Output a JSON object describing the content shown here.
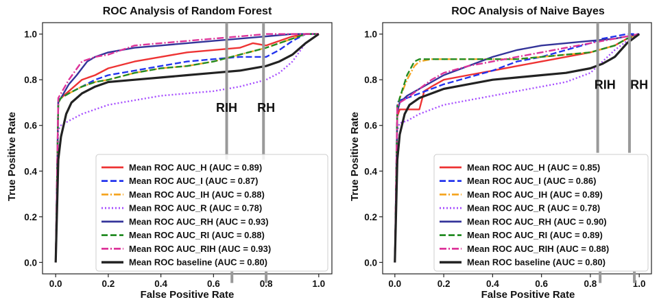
{
  "chart_data": [
    {
      "type": "line",
      "title": "ROC Analysis of Random Forest",
      "xlabel": "False Positive Rate",
      "ylabel": "True Positive Rate",
      "xlim": [
        -0.05,
        1.05
      ],
      "ylim": [
        -0.05,
        1.05
      ],
      "xticks": [
        "0.0",
        "0.2",
        "0.4",
        "0.6",
        "0.8",
        "1.0"
      ],
      "yticks": [
        "0.0",
        "0.2",
        "0.4",
        "0.6",
        "0.8",
        "1.0"
      ],
      "grid": false,
      "legend_position": "lower-right",
      "annotations": [
        {
          "text": "RIH",
          "x": 0.65,
          "y": 0.66
        },
        {
          "text": "RH",
          "x": 0.8,
          "y": 0.66
        }
      ],
      "vlines": [
        {
          "x": 0.65,
          "ymin": 0.45,
          "ymax": 1.05,
          "color": "#999999"
        },
        {
          "x": 0.79,
          "ymin": 0.45,
          "ymax": 1.05,
          "color": "#999999"
        },
        {
          "x": 0.67,
          "ymin": -0.09,
          "ymax": -0.04,
          "color": "#999999"
        },
        {
          "x": 0.8,
          "ymin": -0.09,
          "ymax": -0.04,
          "color": "#999999"
        }
      ],
      "series": [
        {
          "name": "Mean ROC AUC_H (AUC = 0.89)",
          "color": "#ee3333",
          "dash": "solid",
          "x": [
            0,
            0.01,
            0.02,
            0.05,
            0.08,
            0.1,
            0.15,
            0.2,
            0.3,
            0.4,
            0.5,
            0.6,
            0.7,
            0.75,
            0.8,
            0.85,
            0.9,
            0.95,
            1.0
          ],
          "y": [
            0,
            0.7,
            0.72,
            0.75,
            0.78,
            0.8,
            0.82,
            0.85,
            0.88,
            0.9,
            0.92,
            0.93,
            0.94,
            0.96,
            0.95,
            0.97,
            0.99,
            1.0,
            1.0
          ]
        },
        {
          "name": "Mean ROC AUC_I (AUC = 0.87)",
          "color": "#2233ee",
          "dash": "dashed",
          "x": [
            0,
            0.01,
            0.02,
            0.05,
            0.1,
            0.15,
            0.2,
            0.3,
            0.4,
            0.5,
            0.6,
            0.7,
            0.75,
            0.8,
            0.85,
            0.9,
            0.95,
            1.0
          ],
          "y": [
            0,
            0.7,
            0.72,
            0.74,
            0.77,
            0.8,
            0.82,
            0.84,
            0.86,
            0.88,
            0.89,
            0.9,
            0.9,
            0.9,
            0.93,
            0.97,
            1.0,
            1.0
          ]
        },
        {
          "name": "Mean ROC AUC_IH (AUC = 0.88)",
          "color": "#f5a623",
          "dash": "dashdot",
          "x": [
            0,
            0.01,
            0.02,
            0.05,
            0.1,
            0.15,
            0.2,
            0.3,
            0.4,
            0.5,
            0.6,
            0.7,
            0.8,
            0.9,
            0.95,
            1.0
          ],
          "y": [
            0,
            0.7,
            0.72,
            0.74,
            0.77,
            0.79,
            0.8,
            0.83,
            0.85,
            0.86,
            0.88,
            0.91,
            0.94,
            0.98,
            1.0,
            1.0
          ]
        },
        {
          "name": "Mean ROC AUC_R (AUC = 0.78)",
          "color": "#a64dff",
          "dash": "dotted",
          "x": [
            0,
            0.01,
            0.02,
            0.05,
            0.1,
            0.15,
            0.2,
            0.3,
            0.4,
            0.5,
            0.6,
            0.7,
            0.8,
            0.85,
            0.9,
            0.95,
            1.0
          ],
          "y": [
            0,
            0.58,
            0.6,
            0.62,
            0.65,
            0.67,
            0.69,
            0.71,
            0.73,
            0.74,
            0.75,
            0.77,
            0.8,
            0.83,
            0.88,
            0.96,
            1.0
          ]
        },
        {
          "name": "Mean ROC AUC_RH (AUC = 0.93)",
          "color": "#333399",
          "dash": "solid",
          "x": [
            0,
            0.01,
            0.02,
            0.05,
            0.08,
            0.1,
            0.12,
            0.15,
            0.2,
            0.25,
            0.3,
            0.4,
            0.5,
            0.6,
            0.7,
            0.8,
            0.9,
            1.0
          ],
          "y": [
            0,
            0.71,
            0.72,
            0.78,
            0.82,
            0.85,
            0.88,
            0.9,
            0.92,
            0.93,
            0.94,
            0.95,
            0.96,
            0.97,
            0.98,
            0.99,
            1.0,
            1.0
          ]
        },
        {
          "name": "Mean ROC AUC_RI (AUC = 0.88)",
          "color": "#228b22",
          "dash": "dashed",
          "x": [
            0,
            0.01,
            0.02,
            0.05,
            0.1,
            0.15,
            0.2,
            0.3,
            0.4,
            0.5,
            0.6,
            0.7,
            0.8,
            0.9,
            0.95,
            1.0
          ],
          "y": [
            0,
            0.7,
            0.72,
            0.74,
            0.77,
            0.79,
            0.8,
            0.83,
            0.85,
            0.86,
            0.88,
            0.91,
            0.94,
            0.98,
            1.0,
            1.0
          ]
        },
        {
          "name": "Mean ROC AUC_RIH (AUC = 0.93)",
          "color": "#dd3399",
          "dash": "dashdot",
          "x": [
            0,
            0.01,
            0.02,
            0.05,
            0.1,
            0.15,
            0.2,
            0.25,
            0.3,
            0.4,
            0.5,
            0.6,
            0.7,
            0.8,
            0.9,
            1.0
          ],
          "y": [
            0,
            0.72,
            0.74,
            0.8,
            0.88,
            0.9,
            0.91,
            0.93,
            0.95,
            0.96,
            0.97,
            0.98,
            0.99,
            1.0,
            1.0,
            1.0
          ]
        },
        {
          "name": "Mean ROC baseline (AUC = 0.80)",
          "color": "#222222",
          "dash": "solid",
          "x": [
            0,
            0.01,
            0.02,
            0.04,
            0.06,
            0.1,
            0.15,
            0.2,
            0.3,
            0.4,
            0.5,
            0.6,
            0.7,
            0.8,
            0.85,
            0.9,
            0.95,
            1.0
          ],
          "y": [
            0,
            0.45,
            0.55,
            0.65,
            0.7,
            0.74,
            0.77,
            0.79,
            0.8,
            0.81,
            0.82,
            0.83,
            0.84,
            0.86,
            0.88,
            0.91,
            0.96,
            1.0
          ]
        }
      ]
    },
    {
      "type": "line",
      "title": "ROC Analysis of Naive Bayes",
      "xlabel": "False Positive Rate",
      "ylabel": "True Positive Rate",
      "xlim": [
        -0.05,
        1.05
      ],
      "ylim": [
        -0.05,
        1.05
      ],
      "xticks": [
        "0.0",
        "0.2",
        "0.4",
        "0.6",
        "0.8",
        "1.0"
      ],
      "yticks": [
        "0.0",
        "0.2",
        "0.4",
        "0.6",
        "0.8",
        "1.0"
      ],
      "grid": false,
      "legend_position": "lower-right",
      "annotations": [
        {
          "text": "RIH",
          "x": 0.86,
          "y": 0.76
        },
        {
          "text": "RH",
          "x": 1.0,
          "y": 0.76
        }
      ],
      "vlines": [
        {
          "x": 0.83,
          "ymin": 0.48,
          "ymax": 1.05,
          "color": "#999999"
        },
        {
          "x": 0.96,
          "ymin": 0.48,
          "ymax": 1.05,
          "color": "#999999"
        },
        {
          "x": 0.84,
          "ymin": -0.09,
          "ymax": -0.04,
          "color": "#999999"
        },
        {
          "x": 0.98,
          "ymin": -0.09,
          "ymax": -0.04,
          "color": "#999999"
        }
      ],
      "series": [
        {
          "name": "Mean ROC AUC_H (AUC = 0.85)",
          "color": "#ee3333",
          "dash": "solid",
          "x": [
            0,
            0.01,
            0.02,
            0.05,
            0.1,
            0.12,
            0.15,
            0.2,
            0.3,
            0.4,
            0.5,
            0.6,
            0.7,
            0.8,
            0.9,
            0.95,
            1.0
          ],
          "y": [
            0,
            0.64,
            0.67,
            0.67,
            0.67,
            0.75,
            0.77,
            0.8,
            0.82,
            0.84,
            0.86,
            0.88,
            0.9,
            0.92,
            0.95,
            0.98,
            1.0
          ]
        },
        {
          "name": "Mean ROC AUC_I (AUC = 0.86)",
          "color": "#2233ee",
          "dash": "dashed",
          "x": [
            0,
            0.01,
            0.02,
            0.05,
            0.1,
            0.15,
            0.2,
            0.3,
            0.4,
            0.5,
            0.6,
            0.7,
            0.8,
            0.85,
            0.9,
            0.95,
            1.0
          ],
          "y": [
            0,
            0.7,
            0.71,
            0.72,
            0.74,
            0.76,
            0.78,
            0.81,
            0.84,
            0.88,
            0.9,
            0.93,
            0.96,
            0.98,
            0.99,
            1.0,
            1.0
          ]
        },
        {
          "name": "Mean ROC AUC_IH (AUC = 0.89)",
          "color": "#f5a623",
          "dash": "dashdot",
          "x": [
            0,
            0.01,
            0.02,
            0.05,
            0.08,
            0.1,
            0.15,
            0.2,
            0.3,
            0.4,
            0.5,
            0.6,
            0.7,
            0.8,
            0.9,
            0.95,
            1.0
          ],
          "y": [
            0,
            0.68,
            0.72,
            0.8,
            0.86,
            0.88,
            0.89,
            0.89,
            0.89,
            0.89,
            0.89,
            0.9,
            0.91,
            0.92,
            0.95,
            0.98,
            1.0
          ]
        },
        {
          "name": "Mean ROC AUC_R (AUC = 0.78)",
          "color": "#a64dff",
          "dash": "dotted",
          "x": [
            0,
            0.01,
            0.02,
            0.05,
            0.1,
            0.15,
            0.2,
            0.3,
            0.4,
            0.5,
            0.6,
            0.7,
            0.8,
            0.85,
            0.9,
            0.95,
            1.0
          ],
          "y": [
            0,
            0.58,
            0.61,
            0.62,
            0.65,
            0.67,
            0.69,
            0.71,
            0.73,
            0.75,
            0.77,
            0.79,
            0.83,
            0.88,
            0.93,
            0.97,
            1.0
          ]
        },
        {
          "name": "Mean ROC AUC_RH (AUC = 0.90)",
          "color": "#333399",
          "dash": "solid",
          "x": [
            0,
            0.01,
            0.02,
            0.05,
            0.1,
            0.15,
            0.2,
            0.3,
            0.4,
            0.5,
            0.6,
            0.7,
            0.8,
            0.9,
            0.95,
            1.0
          ],
          "y": [
            0,
            0.66,
            0.7,
            0.73,
            0.76,
            0.79,
            0.82,
            0.86,
            0.9,
            0.93,
            0.95,
            0.96,
            0.97,
            0.98,
            0.99,
            1.0
          ]
        },
        {
          "name": "Mean ROC AUC_RI (AUC = 0.89)",
          "color": "#228b22",
          "dash": "dashed",
          "x": [
            0,
            0.01,
            0.02,
            0.05,
            0.08,
            0.1,
            0.15,
            0.2,
            0.3,
            0.4,
            0.5,
            0.6,
            0.7,
            0.8,
            0.9,
            0.95,
            1.0
          ],
          "y": [
            0,
            0.68,
            0.72,
            0.82,
            0.88,
            0.89,
            0.89,
            0.89,
            0.89,
            0.89,
            0.89,
            0.9,
            0.91,
            0.92,
            0.95,
            0.98,
            1.0
          ]
        },
        {
          "name": "Mean ROC AUC_RIH (AUC = 0.88)",
          "color": "#dd3399",
          "dash": "dashdot",
          "x": [
            0,
            0.01,
            0.02,
            0.05,
            0.1,
            0.15,
            0.2,
            0.3,
            0.4,
            0.5,
            0.6,
            0.7,
            0.8,
            0.9,
            0.95,
            1.0
          ],
          "y": [
            0,
            0.68,
            0.7,
            0.72,
            0.76,
            0.8,
            0.83,
            0.86,
            0.88,
            0.9,
            0.92,
            0.94,
            0.96,
            0.98,
            0.99,
            1.0
          ]
        },
        {
          "name": "Mean ROC baseline (AUC = 0.80)",
          "color": "#222222",
          "dash": "solid",
          "x": [
            0,
            0.01,
            0.02,
            0.04,
            0.06,
            0.1,
            0.15,
            0.2,
            0.3,
            0.4,
            0.5,
            0.6,
            0.7,
            0.8,
            0.85,
            0.9,
            0.95,
            1.0
          ],
          "y": [
            0,
            0.45,
            0.56,
            0.65,
            0.69,
            0.72,
            0.74,
            0.76,
            0.78,
            0.8,
            0.81,
            0.82,
            0.83,
            0.85,
            0.87,
            0.9,
            0.96,
            1.0
          ]
        }
      ]
    }
  ]
}
